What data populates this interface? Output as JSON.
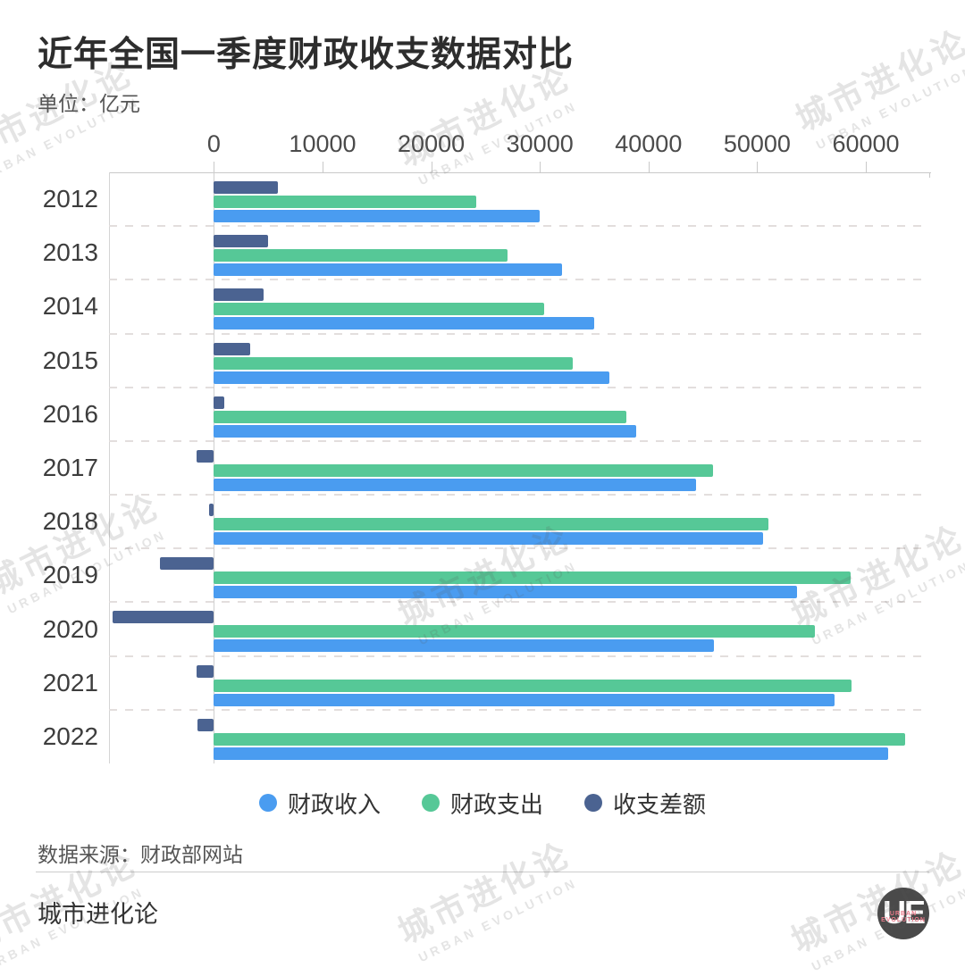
{
  "title": "近年全国一季度财政收支数据对比",
  "unit_label": "单位：亿元",
  "watermark": {
    "zh": "城市进化论",
    "en": "URBAN EVOLUTION"
  },
  "footer": {
    "source": "数据来源：财政部网站",
    "brand": "城市进化论",
    "logo_text": "UE",
    "logo_sub": "URBAN EVOLUTION"
  },
  "chart_data": {
    "type": "bar",
    "orientation": "horizontal",
    "title": "近年全国一季度财政收支数据对比",
    "unit": "亿元",
    "categories": [
      "2012",
      "2013",
      "2014",
      "2015",
      "2016",
      "2017",
      "2018",
      "2019",
      "2020",
      "2021",
      "2022"
    ],
    "series": [
      {
        "key": "revenue",
        "name": "财政收入",
        "color": "#4A9CF0",
        "values": [
          29976,
          32034,
          35026,
          36407,
          38896,
          44366,
          50546,
          53656,
          45984,
          57115,
          62037
        ]
      },
      {
        "key": "expenditure",
        "name": "财政支出",
        "color": "#56C897",
        "values": [
          24118,
          27037,
          30436,
          33062,
          37958,
          45917,
          50997,
          58629,
          55284,
          58703,
          63587
        ]
      },
      {
        "key": "balance",
        "name": "收支差额",
        "color": "#4B6391",
        "values": [
          5858,
          4997,
          4590,
          3345,
          938,
          -1551,
          -451,
          -4973,
          -9300,
          -1588,
          -1550
        ]
      }
    ],
    "bar_row_order_topdown": [
      "收支差额",
      "财政支出",
      "财政收入"
    ],
    "xticks": [
      0,
      10000,
      20000,
      30000,
      40000,
      50000,
      60000
    ],
    "xlim": [
      -9650,
      66000
    ],
    "xlabel": "",
    "ylabel": "",
    "grid": "dashed-row-separators",
    "legend_position": "bottom"
  }
}
